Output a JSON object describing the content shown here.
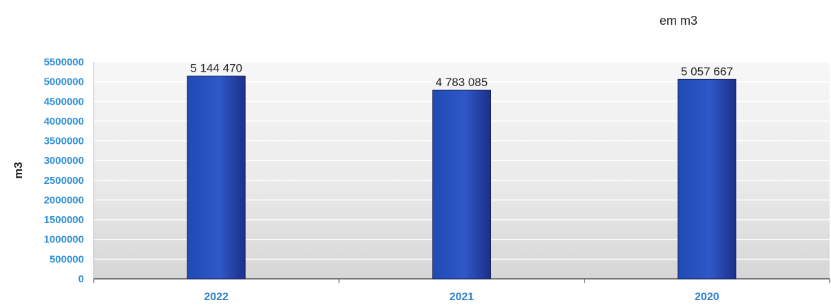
{
  "unit_note": "em m3",
  "chart_data": {
    "type": "bar",
    "title": "",
    "xlabel": "",
    "ylabel": "m3",
    "categories": [
      "2022",
      "2021",
      "2020"
    ],
    "values": [
      5144470,
      4783085,
      5057667
    ],
    "data_labels": [
      "5 144 470",
      "4 783 085",
      "5 057 667"
    ],
    "ylim": [
      0,
      5500000
    ],
    "yticks": [
      0,
      500000,
      1000000,
      1500000,
      2000000,
      2500000,
      3000000,
      3500000,
      4000000,
      4500000,
      5000000,
      5500000
    ],
    "ytick_labels": [
      "0",
      "500000",
      "1000000",
      "1500000",
      "2000000",
      "2500000",
      "3000000",
      "3500000",
      "4000000",
      "4500000",
      "5000000",
      "5500000"
    ],
    "grid": true,
    "legend": "none",
    "colors": {
      "bar_dark": "#1d2f8a",
      "bar_mid": "#2f58c8",
      "bar_light": "#1f4bb4",
      "tick_text": "#2f8fd8",
      "category_text": "#2b7fd0",
      "plot_bg_top": "#f5f5f5",
      "plot_bg_bottom": "#d8d8d8",
      "grid_line": "#ffffff"
    }
  }
}
